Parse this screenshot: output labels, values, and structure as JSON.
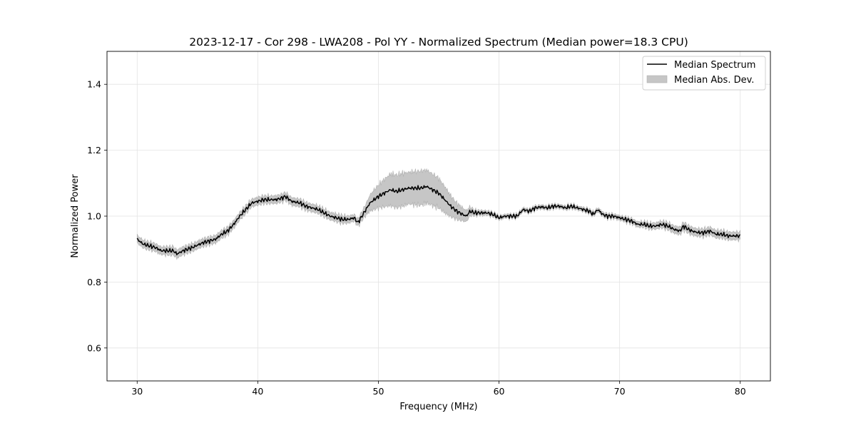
{
  "chart_data": {
    "type": "line",
    "title": "2023-12-17 - Cor 298 - LWA208 - Pol YY - Normalized Spectrum (Median power=18.3 CPU)",
    "xlabel": "Frequency (MHz)",
    "ylabel": "Normalized Power",
    "xlim": [
      27.5,
      82.5
    ],
    "ylim": [
      0.5,
      1.5
    ],
    "xticks": [
      30,
      40,
      50,
      60,
      70,
      80
    ],
    "yticks": [
      0.6,
      0.8,
      1.0,
      1.2,
      1.4
    ],
    "xtick_labels": [
      "30",
      "40",
      "50",
      "60",
      "70",
      "80"
    ],
    "ytick_labels": [
      "0.6",
      "0.8",
      "1.0",
      "1.2",
      "1.4"
    ],
    "grid": true,
    "legend_position": "top-right",
    "legend": [
      "Median Spectrum",
      "Median Abs. Dev."
    ],
    "series": [
      {
        "name": "Median Spectrum",
        "color": "#000000",
        "x": [
          30,
          30.5,
          31,
          31.5,
          32,
          32.5,
          33,
          33.3,
          33.8,
          34.2,
          34.6,
          35,
          35.5,
          36,
          36.5,
          37,
          37.5,
          38,
          38.5,
          39,
          39.5,
          40,
          40.5,
          41,
          41.5,
          42,
          42.3,
          42.8,
          43.5,
          44,
          44.5,
          45,
          45.5,
          46,
          46.5,
          47,
          47.5,
          48,
          48.3,
          48.8,
          49.3,
          50,
          50.5,
          51,
          51.5,
          52,
          52.5,
          53,
          53.5,
          54,
          54.5,
          55,
          55.5,
          56,
          56.5,
          57,
          57.3,
          57.6,
          58,
          58.5,
          59,
          59.5,
          60,
          60.5,
          61,
          61.5,
          62,
          62.5,
          63,
          63.5,
          64,
          64.5,
          65,
          65.5,
          66,
          66.5,
          67,
          67.5,
          67.8,
          68.2,
          68.6,
          69,
          69.5,
          70,
          70.5,
          71,
          71.5,
          72,
          72.5,
          73,
          73.5,
          74,
          74.5,
          75,
          75.3,
          75.7,
          76,
          76.5,
          77,
          77.5,
          78,
          78.5,
          79,
          79.5,
          80
        ],
        "values": [
          0.93,
          0.915,
          0.91,
          0.905,
          0.895,
          0.895,
          0.895,
          0.885,
          0.895,
          0.9,
          0.905,
          0.912,
          0.92,
          0.925,
          0.93,
          0.945,
          0.955,
          0.975,
          1.0,
          1.02,
          1.04,
          1.045,
          1.05,
          1.05,
          1.05,
          1.055,
          1.06,
          1.045,
          1.04,
          1.03,
          1.025,
          1.02,
          1.01,
          1.0,
          0.995,
          0.99,
          0.99,
          0.995,
          0.98,
          1.01,
          1.04,
          1.06,
          1.07,
          1.08,
          1.075,
          1.08,
          1.085,
          1.085,
          1.085,
          1.09,
          1.08,
          1.07,
          1.05,
          1.03,
          1.015,
          1.005,
          1.0,
          1.015,
          1.01,
          1.01,
          1.01,
          1.005,
          0.995,
          1.0,
          1.0,
          1.0,
          1.02,
          1.015,
          1.025,
          1.028,
          1.025,
          1.03,
          1.03,
          1.025,
          1.03,
          1.025,
          1.02,
          1.015,
          1.005,
          1.02,
          1.005,
          1.0,
          1.0,
          0.995,
          0.99,
          0.985,
          0.975,
          0.975,
          0.97,
          0.97,
          0.975,
          0.97,
          0.96,
          0.955,
          0.97,
          0.96,
          0.955,
          0.95,
          0.95,
          0.955,
          0.945,
          0.945,
          0.94,
          0.94,
          0.94
        ]
      },
      {
        "name": "Median Abs. Dev.",
        "color": "#c6c6c6",
        "x": [
          30,
          31,
          32,
          33,
          34,
          35,
          36,
          37,
          38,
          39,
          40,
          41,
          42,
          43,
          44,
          45,
          46,
          47,
          48,
          48.5,
          49,
          49.5,
          50,
          50.5,
          51,
          51.5,
          52,
          52.5,
          53,
          53.5,
          54,
          54.5,
          55,
          55.5,
          56,
          56.5,
          57,
          57.5,
          58,
          60,
          65,
          70,
          75,
          80
        ],
        "half_width": [
          0.012,
          0.012,
          0.012,
          0.013,
          0.012,
          0.012,
          0.012,
          0.012,
          0.012,
          0.012,
          0.012,
          0.012,
          0.012,
          0.012,
          0.012,
          0.012,
          0.012,
          0.012,
          0.01,
          0.012,
          0.018,
          0.028,
          0.035,
          0.042,
          0.048,
          0.05,
          0.05,
          0.048,
          0.05,
          0.052,
          0.05,
          0.048,
          0.045,
          0.04,
          0.032,
          0.025,
          0.02,
          0.015,
          0.008,
          0.006,
          0.006,
          0.007,
          0.012,
          0.012
        ]
      }
    ]
  }
}
